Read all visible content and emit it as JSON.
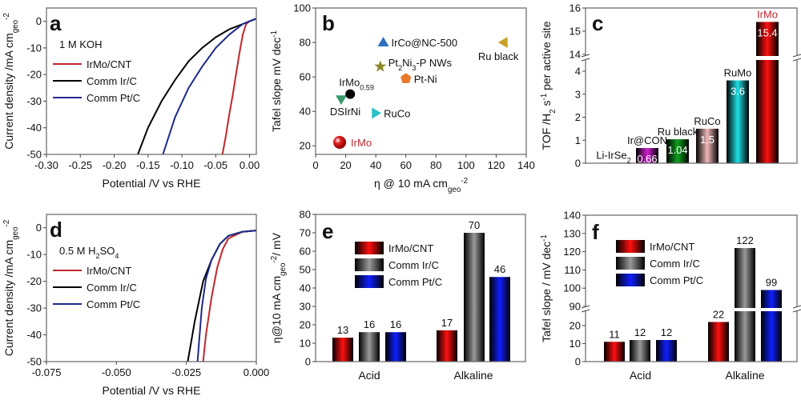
{
  "chart_data": [
    {
      "panel": "a",
      "type": "line",
      "panel_label": "a",
      "annotation": "1 M KOH",
      "xlabel": "Potential /V vs RHE",
      "ylabel": "Current density /mA cm_{geo}^{-2}",
      "xlim": [
        -0.3,
        0.01
      ],
      "ylim": [
        -50,
        5
      ],
      "xticks": [
        -0.3,
        -0.25,
        -0.2,
        -0.15,
        -0.1,
        -0.05,
        0.0
      ],
      "xtick_labels": [
        "-0.30",
        "-0.25",
        "-0.20",
        "-0.15",
        "-0.10",
        "-0.05",
        "0.00"
      ],
      "yticks": [
        0,
        -10,
        -20,
        -30,
        -40,
        -50
      ],
      "ytick_labels": [
        "0",
        "-10",
        "-20",
        "-30",
        "-40",
        "-50"
      ],
      "series": [
        {
          "name": "IrMo/CNT",
          "color": "#c0272d",
          "x": [
            0.01,
            0,
            -0.005,
            -0.01,
            -0.015,
            -0.02,
            -0.025,
            -0.03,
            -0.035,
            -0.04
          ],
          "y": [
            1,
            0,
            -1,
            -5,
            -12,
            -20,
            -28,
            -35,
            -43,
            -50
          ]
        },
        {
          "name": "Comm Ir/C",
          "color": "#000000",
          "x": [
            0.01,
            0,
            -0.01,
            -0.03,
            -0.05,
            -0.07,
            -0.09,
            -0.11,
            -0.13,
            -0.15,
            -0.165
          ],
          "y": [
            1,
            0,
            -1,
            -3,
            -6,
            -10,
            -15,
            -22,
            -30,
            -40,
            -50
          ]
        },
        {
          "name": "Comm Pt/C",
          "color": "#1f2a8c",
          "x": [
            0.01,
            0,
            -0.01,
            -0.03,
            -0.05,
            -0.07,
            -0.09,
            -0.11,
            -0.128
          ],
          "y": [
            1,
            0,
            -1,
            -5,
            -10,
            -17,
            -25,
            -36,
            -50
          ]
        }
      ],
      "legend": "top-left"
    },
    {
      "panel": "b",
      "type": "scatter",
      "panel_label": "b",
      "xlabel": "η @ 10 mA cm_{geo}^{-2}",
      "ylabel": "Tafel slope mV dec^{-1}",
      "xlim": [
        0,
        140
      ],
      "ylim": [
        15,
        100
      ],
      "xticks": [
        0,
        20,
        40,
        60,
        80,
        100,
        120,
        140
      ],
      "xtick_labels": [
        "0",
        "20",
        "40",
        "60",
        "80",
        "100",
        "120",
        "140"
      ],
      "yticks": [
        20,
        40,
        60,
        80,
        100
      ],
      "ytick_labels": [
        "20",
        "40",
        "60",
        "80",
        "100"
      ],
      "points": [
        {
          "name": "IrMo",
          "x": 16,
          "y": 22,
          "marker": "sphere",
          "color": "#e02020",
          "label_color": "#c0272d"
        },
        {
          "name": "DSIrNi",
          "x": 17,
          "y": 47,
          "marker": "triangle-down",
          "color": "#3a9a6a"
        },
        {
          "name": "IrMo_{0.59}",
          "x": 23,
          "y": 50,
          "marker": "circle",
          "color": "#000000"
        },
        {
          "name": "RuCo",
          "x": 40,
          "y": 39,
          "marker": "triangle-right",
          "color": "#2bbfc8"
        },
        {
          "name": "IrCo@NC-500",
          "x": 45,
          "y": 80,
          "marker": "triangle-up",
          "color": "#2f6fc0"
        },
        {
          "name": "Pt_{2}Ni_{3}-P NWs",
          "x": 43,
          "y": 66,
          "marker": "star",
          "color": "#8a8a2a"
        },
        {
          "name": "Pt-Ni",
          "x": 60,
          "y": 59,
          "marker": "pentagon",
          "color": "#e8782a"
        },
        {
          "name": "Ru black",
          "x": 125,
          "y": 80,
          "marker": "triangle-left",
          "color": "#c9a227"
        }
      ]
    },
    {
      "panel": "c",
      "type": "bar",
      "panel_label": "c",
      "ylabel": "TOF /H_{2} s^{-1} per active site",
      "ylim": [
        0,
        16
      ],
      "axis_break": [
        4.6,
        13.85
      ],
      "yticks": [
        0,
        1,
        2,
        3,
        4,
        14,
        15,
        16
      ],
      "ytick_labels": [
        "0",
        "1",
        "2",
        "3",
        "4",
        "14",
        "15",
        "16"
      ],
      "categories": [
        "Li-IrSe_{2}",
        "Ir@CON",
        "Ru black",
        "RuCo",
        "RuMo",
        "IrMo"
      ],
      "values": [
        0.02,
        0.66,
        1.04,
        1.5,
        3.6,
        15.4
      ],
      "value_labels": [
        "",
        "0.66",
        "1.04",
        "1.5",
        "3.6",
        "15.4"
      ],
      "colors": [
        "#222222",
        "#d020d0",
        "#10a020",
        "#f0b8b8",
        "#20e0e8",
        "#ff1010"
      ],
      "category_label_colors": [
        "#111111",
        "#111111",
        "#111111",
        "#111111",
        "#111111",
        "#c0272d"
      ]
    },
    {
      "panel": "d",
      "type": "line",
      "panel_label": "d",
      "annotation": "0.5 M H_{2}SO_{4}",
      "xlabel": "Potential /V vs RHE",
      "ylabel": "Current density /mA cm_{geo}^{-2}",
      "xlim": [
        -0.075,
        0.0
      ],
      "ylim": [
        -50,
        5
      ],
      "xticks": [
        -0.075,
        -0.05,
        -0.025,
        0.0
      ],
      "xtick_labels": [
        "-0.075",
        "-0.050",
        "-0.025",
        "0.000"
      ],
      "yticks": [
        0,
        -10,
        -20,
        -30,
        -40,
        -50
      ],
      "ytick_labels": [
        "0",
        "-10",
        "-20",
        "-30",
        "-40",
        "-50"
      ],
      "series": [
        {
          "name": "IrMo/CNT",
          "color": "#c0272d",
          "x": [
            0,
            -0.005,
            -0.01,
            -0.012,
            -0.014,
            -0.016,
            -0.018,
            -0.019
          ],
          "y": [
            -1,
            -1.5,
            -4,
            -8,
            -15,
            -26,
            -40,
            -50
          ]
        },
        {
          "name": "Comm Ir/C",
          "color": "#000000",
          "x": [
            0,
            -0.005,
            -0.01,
            -0.013,
            -0.016,
            -0.019,
            -0.022,
            -0.0245
          ],
          "y": [
            -1,
            -1.5,
            -3,
            -6,
            -12,
            -20,
            -35,
            -50
          ]
        },
        {
          "name": "Comm Pt/C",
          "color": "#1f2a8c",
          "x": [
            0,
            -0.005,
            -0.01,
            -0.013,
            -0.016,
            -0.018,
            -0.0195,
            -0.021
          ],
          "y": [
            -1,
            -1.5,
            -3,
            -6,
            -12,
            -19,
            -30,
            -50
          ]
        }
      ],
      "legend": "top-left"
    },
    {
      "panel": "e",
      "type": "bar",
      "panel_label": "e",
      "ylabel": "η@10 mA cm_{geo}^{-2}/ mV",
      "ylim": [
        0,
        80
      ],
      "yticks": [
        0,
        10,
        20,
        30,
        40,
        50,
        60,
        70,
        80
      ],
      "ytick_labels": [
        "0",
        "10",
        "20",
        "30",
        "40",
        "50",
        "60",
        "70",
        "80"
      ],
      "categories": [
        "Acid",
        "Alkaline"
      ],
      "series": [
        {
          "name": "IrMo/CNT",
          "color": "#ff1010",
          "values": [
            13,
            17
          ],
          "value_labels": [
            "13",
            "17"
          ]
        },
        {
          "name": "Comm Ir/C",
          "color": "#9a9a9a",
          "values": [
            16,
            70
          ],
          "value_labels": [
            "16",
            "70"
          ]
        },
        {
          "name": "Comm Pt/C",
          "color": "#1020ff",
          "values": [
            16,
            46
          ],
          "value_labels": [
            "16",
            "46"
          ]
        }
      ],
      "legend": "top-left"
    },
    {
      "panel": "f",
      "type": "bar",
      "panel_label": "f",
      "ylabel": "Tafel slope / mV dec^{-1}",
      "ylim": [
        0,
        140
      ],
      "axis_break": [
        29,
        89
      ],
      "yticks": [
        0,
        10,
        20,
        90,
        100,
        110,
        120,
        130,
        140
      ],
      "ytick_labels": [
        "0",
        "10",
        "20",
        "90",
        "100",
        "110",
        "120",
        "130",
        "140"
      ],
      "categories": [
        "Acid",
        "Alkaline"
      ],
      "series": [
        {
          "name": "IrMo/CNT",
          "color": "#ff1010",
          "values": [
            11,
            22
          ],
          "value_labels": [
            "11",
            "22"
          ]
        },
        {
          "name": "Comm Ir/C",
          "color": "#9a9a9a",
          "values": [
            12,
            122
          ],
          "value_labels": [
            "12",
            "122"
          ]
        },
        {
          "name": "Comm Pt/C",
          "color": "#1020ff",
          "values": [
            12,
            99
          ],
          "value_labels": [
            "12",
            "99"
          ]
        }
      ],
      "legend": "top-left"
    }
  ]
}
